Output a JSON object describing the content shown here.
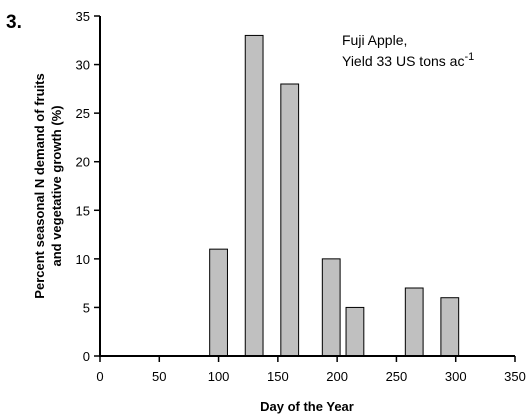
{
  "figure_number": "3.",
  "chart_data": {
    "type": "bar",
    "x": [
      100,
      130,
      160,
      195,
      215,
      265,
      295
    ],
    "values": [
      11,
      33,
      28,
      10,
      5,
      7,
      6
    ],
    "xlabel": "Day of the Year",
    "ylabel_line1": "Percent seasonal N demand of fruits",
    "ylabel_line2": "and vegetative growth (%)",
    "xlim": [
      0,
      350
    ],
    "ylim": [
      0,
      35
    ],
    "xticks": [
      0,
      50,
      100,
      150,
      200,
      250,
      300,
      350
    ],
    "yticks": [
      0,
      5,
      10,
      15,
      20,
      25,
      30,
      35
    ],
    "bar_width_days": 15,
    "bar_color": "#c0c0c0",
    "annotation_line1": "Fuji Apple,",
    "annotation_line2": "Yield  33 US tons ac",
    "annotation_superscript": "-1",
    "grid": false
  }
}
